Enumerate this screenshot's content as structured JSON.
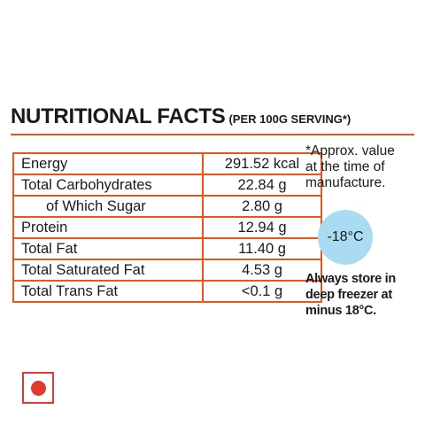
{
  "header": {
    "title": "NUTRITIONAL FACTS",
    "subtitle": "(PER 100G SERVING*)"
  },
  "table": {
    "rows": [
      [
        "Energy",
        "291.52 kcal"
      ],
      [
        "Total Carbohydrates",
        "22.84 g"
      ],
      [
        "of Which Sugar",
        "2.80 g"
      ],
      [
        "Protein",
        "12.94 g"
      ],
      [
        "Total Fat",
        "11.40 g"
      ],
      [
        "Total Saturated Fat",
        "4.53 g"
      ],
      [
        "Total Trans Fat",
        "<0.1 g"
      ]
    ]
  },
  "note": {
    "lines": [
      "*Approx. value",
      "at the time of",
      "manufacture."
    ]
  },
  "temperature": "-18°C",
  "storage": {
    "lines": [
      "Always store in",
      "deep freezer at",
      "minus 18°C."
    ]
  }
}
